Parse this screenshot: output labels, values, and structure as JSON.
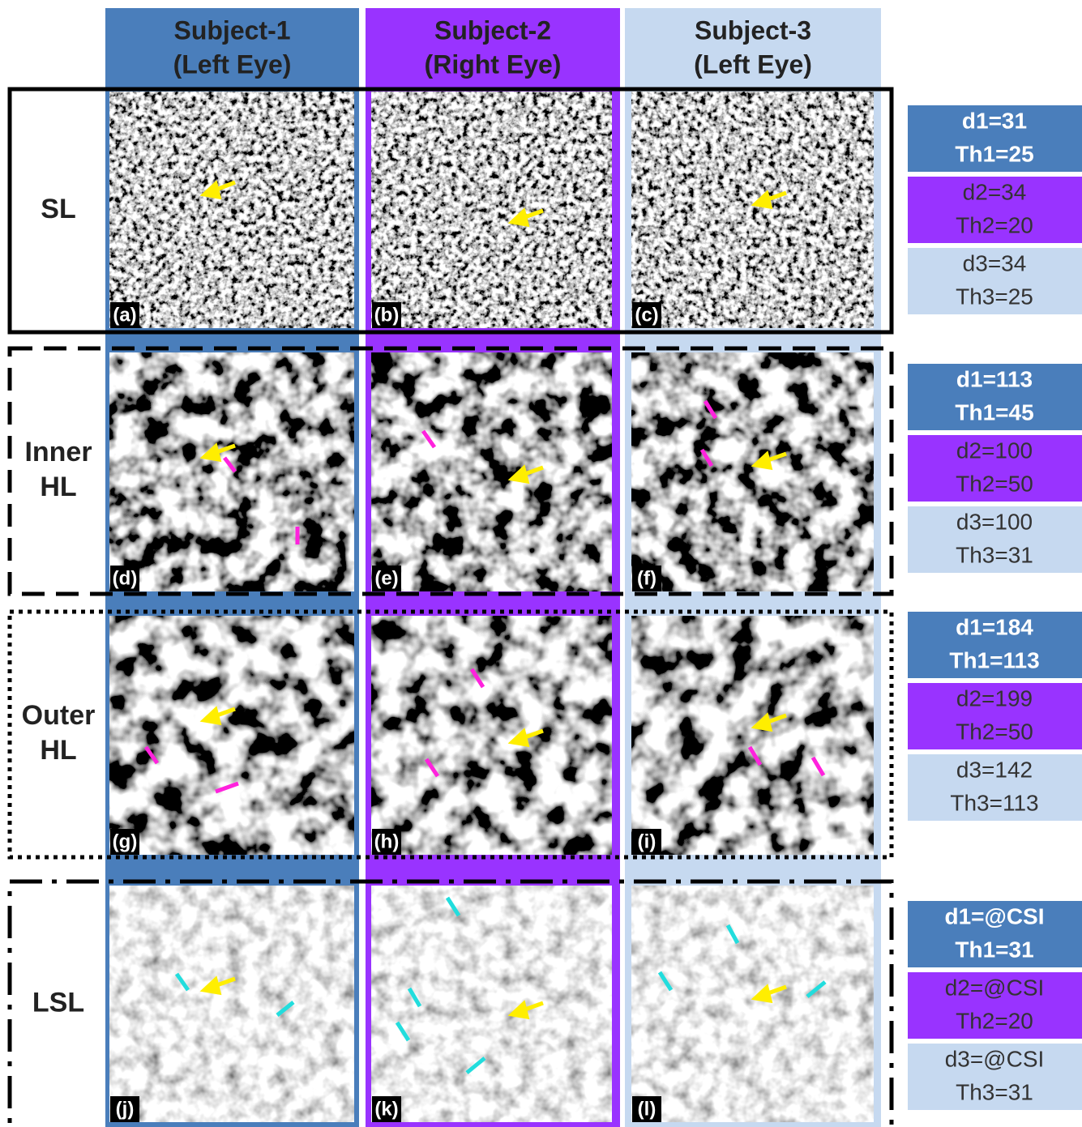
{
  "columns": [
    {
      "title": "Subject-1",
      "subtitle": "(Left Eye)"
    },
    {
      "title": "Subject-2",
      "subtitle": "(Right Eye)"
    },
    {
      "title": "Subject-3",
      "subtitle": "(Left Eye)"
    }
  ],
  "rows": [
    {
      "label": [
        "SL"
      ],
      "panels": [
        "(a)",
        "(b)",
        "(c)"
      ],
      "params": [
        [
          "d1=31",
          "Th1=25"
        ],
        [
          "d2=34",
          "Th2=20"
        ],
        [
          "d3=34",
          "Th3=25"
        ]
      ]
    },
    {
      "label": [
        "Inner",
        "HL"
      ],
      "panels": [
        "(d)",
        "(e)",
        "(f)"
      ],
      "params": [
        [
          "d1=113",
          "Th1=45"
        ],
        [
          "d2=100",
          "Th2=50"
        ],
        [
          "d3=100",
          "Th3=31"
        ]
      ]
    },
    {
      "label": [
        "Outer",
        "HL"
      ],
      "panels": [
        "(g)",
        "(h)",
        "(i)"
      ],
      "params": [
        [
          "d1=184",
          "Th1=113"
        ],
        [
          "d2=199",
          "Th2=50"
        ],
        [
          "d3=142",
          "Th3=113"
        ]
      ]
    },
    {
      "label": [
        "LSL"
      ],
      "panels": [
        "(j)",
        "(k)",
        "(l)"
      ],
      "params": [
        [
          "d1=@CSI",
          "Th1=31"
        ],
        [
          "d2=@CSI",
          "Th2=20"
        ],
        [
          "d3=@CSI",
          "Th3=31"
        ]
      ]
    }
  ]
}
